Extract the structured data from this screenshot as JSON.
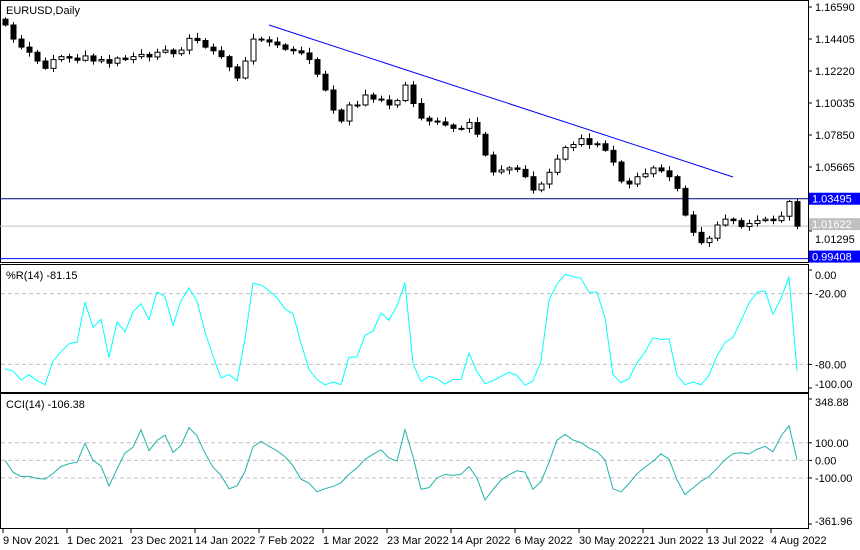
{
  "window": {
    "symbol_label": "EURUSD,Daily"
  },
  "colors": {
    "bull_body": "#ffffff",
    "bear_body": "#000000",
    "trendline": "#0000ff",
    "wpr_line": "#00ffff",
    "cci_line": "#20b2aa",
    "level_label_bg": "#0000ff",
    "bid_label_bg": "#c0c0c0"
  },
  "price_axis": {
    "ticks": [
      "1.16590",
      "1.14405",
      "1.12220",
      "1.10035",
      "1.07850",
      "1.05665",
      "1.01295"
    ]
  },
  "levels": {
    "resistance": {
      "price": 1.03495,
      "label": "1.03495"
    },
    "support": {
      "price": 0.99408,
      "label": "0.99408"
    },
    "bid": {
      "price": 1.01622,
      "label": "1.01622"
    }
  },
  "wpr": {
    "title": "%R(14) -81.15",
    "ticks": [
      "0.00",
      "-20.00",
      "-80.00",
      "-100.00"
    ],
    "levels": [
      -20,
      -80
    ]
  },
  "cci": {
    "title": "CCI(14) -106.38",
    "ticks": [
      "348.88",
      "100.00",
      "0.00",
      "-100.00",
      "-361.96"
    ],
    "levels": [
      100,
      0,
      -100
    ]
  },
  "time_axis": {
    "labels": [
      "9 Nov 2021",
      "1 Dec 2021",
      "23 Dec 2021",
      "14 Jan 2022",
      "7 Feb 2022",
      "1 Mar 2022",
      "23 Mar 2022",
      "14 Apr 2022",
      "6 May 2022",
      "30 May 2022",
      "21 Jun 2022",
      "13 Jul 2022",
      "4 Aug 2022"
    ]
  },
  "chart_data": {
    "type": "candlestick",
    "ylim": [
      0.99408,
      1.1659
    ],
    "closes": [
      1.1536,
      1.144,
      1.1385,
      1.135,
      1.129,
      1.124,
      1.13,
      1.132,
      1.131,
      1.1295,
      1.1325,
      1.129,
      1.13,
      1.1275,
      1.131,
      1.13,
      1.132,
      1.1335,
      1.1318,
      1.135,
      1.1365,
      1.134,
      1.1365,
      1.1445,
      1.143,
      1.1385,
      1.136,
      1.132,
      1.125,
      1.1174,
      1.129,
      1.144,
      1.1435,
      1.142,
      1.14,
      1.137,
      1.136,
      1.1345,
      1.13,
      1.12,
      1.1092,
      1.0955,
      1.088,
      1.099,
      1.099,
      1.1058,
      1.103,
      1.1024,
      1.099,
      1.102,
      1.1126,
      1.1,
      1.09,
      1.088,
      1.0874,
      1.0853,
      1.083,
      1.083,
      1.087,
      1.079,
      1.0648,
      1.0532,
      1.0546,
      1.056,
      1.055,
      1.05,
      1.0409,
      1.045,
      1.053,
      1.062,
      1.07,
      1.072,
      1.076,
      1.072,
      1.0725,
      1.068,
      1.06,
      1.047,
      1.045,
      1.05,
      1.052,
      1.056,
      1.054,
      1.05,
      1.042,
      1.0238,
      1.012,
      1.005,
      1.008,
      1.017,
      1.021,
      1.02,
      1.016,
      1.018,
      1.02,
      1.021,
      1.02,
      1.023,
      1.033,
      1.0162
    ],
    "trendline": {
      "from_bar": 33,
      "from_price": 1.1536,
      "to_bar": 91,
      "to_price": 1.0498
    }
  }
}
